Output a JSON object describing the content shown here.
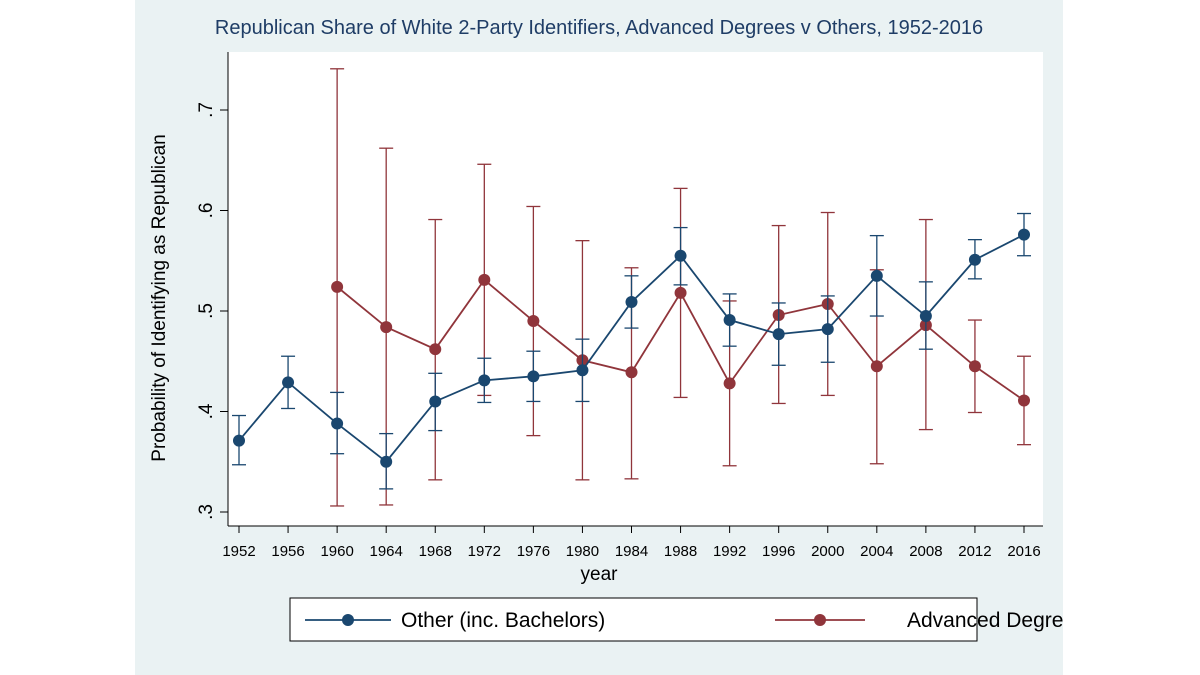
{
  "chart_data": {
    "type": "line",
    "title": "Republican Share of White 2-Party Identifiers, Advanced Degrees v Others, 1952-2016",
    "xlabel": "year",
    "ylabel": "Probability of Identifying as Republican",
    "x": [
      1952,
      1956,
      1960,
      1964,
      1968,
      1972,
      1976,
      1980,
      1984,
      1988,
      1992,
      1996,
      2000,
      2004,
      2008,
      2012,
      2016
    ],
    "xtick_labels": [
      "1952",
      "1956",
      "1960",
      "1964",
      "1968",
      "1972",
      "1976",
      "1980",
      "1984",
      "1988",
      "1992",
      "1996",
      "2000",
      "2004",
      "2008",
      "2012",
      "2016"
    ],
    "yticks": [
      0.3,
      0.4,
      0.5,
      0.6,
      0.7
    ],
    "ytick_labels": [
      ".3",
      ".4",
      ".5",
      ".6",
      ".7"
    ],
    "ylim": [
      0.28,
      0.75
    ],
    "grid": false,
    "legend_position": "bottom",
    "series": [
      {
        "name": "Other (inc. Bachelors)",
        "color": "#1a476f",
        "x": [
          1952,
          1956,
          1960,
          1964,
          1968,
          1972,
          1976,
          1980,
          1984,
          1988,
          1992,
          1996,
          2000,
          2004,
          2008,
          2012,
          2016
        ],
        "values": [
          0.371,
          0.429,
          0.388,
          0.35,
          0.41,
          0.431,
          0.435,
          0.441,
          0.509,
          0.555,
          0.491,
          0.477,
          0.482,
          0.535,
          0.495,
          0.551,
          0.576
        ],
        "lower": [
          0.347,
          0.403,
          0.358,
          0.323,
          0.381,
          0.409,
          0.41,
          0.41,
          0.483,
          0.526,
          0.465,
          0.446,
          0.449,
          0.495,
          0.462,
          0.532,
          0.555
        ],
        "upper": [
          0.396,
          0.455,
          0.419,
          0.378,
          0.438,
          0.453,
          0.46,
          0.472,
          0.535,
          0.583,
          0.517,
          0.508,
          0.515,
          0.575,
          0.529,
          0.571,
          0.597
        ]
      },
      {
        "name": "Advanced Degree",
        "color": "#90353b",
        "x": [
          1960,
          1964,
          1968,
          1972,
          1976,
          1980,
          1984,
          1988,
          1992,
          1996,
          2000,
          2004,
          2008,
          2012,
          2016
        ],
        "values": [
          0.524,
          0.484,
          0.462,
          0.531,
          0.49,
          0.451,
          0.439,
          0.518,
          0.428,
          0.496,
          0.507,
          0.445,
          0.486,
          0.445,
          0.411
        ],
        "lower": [
          0.306,
          0.307,
          0.332,
          0.416,
          0.376,
          0.332,
          0.333,
          0.414,
          0.346,
          0.408,
          0.416,
          0.348,
          0.382,
          0.399,
          0.367
        ],
        "upper": [
          0.741,
          0.662,
          0.591,
          0.646,
          0.604,
          0.57,
          0.543,
          0.622,
          0.51,
          0.585,
          0.598,
          0.541,
          0.591,
          0.491,
          0.455
        ]
      }
    ]
  }
}
